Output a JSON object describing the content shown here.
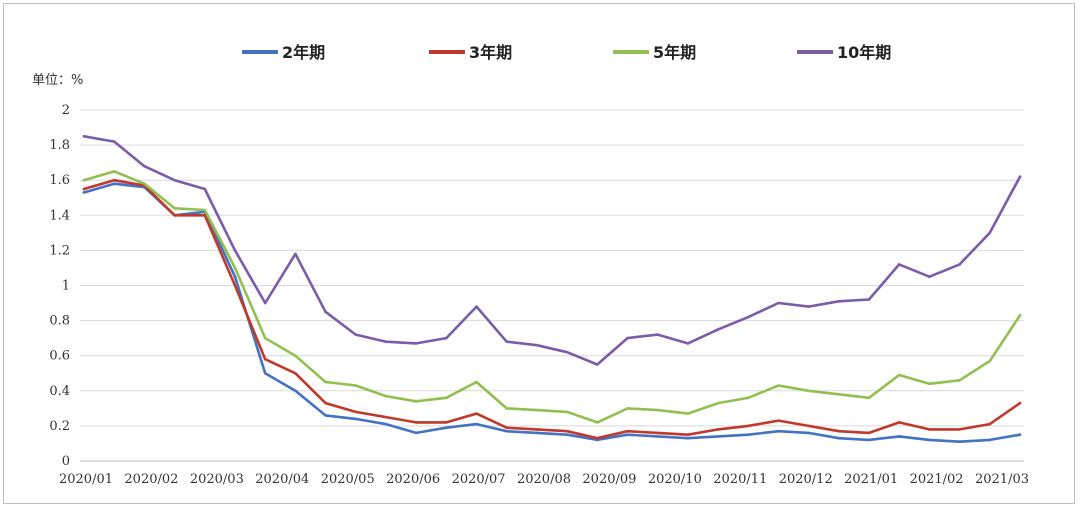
{
  "chart_data": {
    "type": "line",
    "unit_label": "单位：%",
    "ylim": [
      0,
      2
    ],
    "yticks": [
      "0",
      "0.2",
      "0.4",
      "0.6",
      "0.8",
      "1",
      "1.2",
      "1.4",
      "1.6",
      "1.8",
      "2"
    ],
    "grid": true,
    "legend_position": "top",
    "x_labels": [
      "2020/01",
      "2020/02",
      "2020/03",
      "2020/04",
      "2020/05",
      "2020/06",
      "2020/07",
      "2020/08",
      "2020/09",
      "2020/10",
      "2020/11",
      "2020/12",
      "2021/01",
      "2021/02",
      "2021/03"
    ],
    "x": [
      "2020/01 start",
      "2020/01 mid",
      "2020/02 start",
      "2020/02 mid",
      "2020/03 start",
      "2020/03 early",
      "2020/03 mid",
      "2020/03 late",
      "2020/04 start",
      "2020/04 mid",
      "2020/05 start",
      "2020/05 mid",
      "2020/06 start",
      "2020/06 mid",
      "2020/07 start",
      "2020/07 mid",
      "2020/08 start",
      "2020/08 mid",
      "2020/09 start",
      "2020/09 mid",
      "2020/10 start",
      "2020/10 mid",
      "2020/11 start",
      "2020/11 mid",
      "2020/12 start",
      "2020/12 mid",
      "2021/01 start",
      "2021/01 mid",
      "2021/02 start",
      "2021/02 mid",
      "2021/03 start",
      "2021/03 mid"
    ],
    "series": [
      {
        "name": "2年期",
        "color": "#4472C4",
        "values": [
          1.53,
          1.58,
          1.56,
          1.4,
          1.42,
          1.05,
          0.5,
          0.4,
          0.26,
          0.24,
          0.21,
          0.16,
          0.19,
          0.21,
          0.17,
          0.16,
          0.15,
          0.12,
          0.15,
          0.14,
          0.13,
          0.14,
          0.15,
          0.17,
          0.16,
          0.13,
          0.12,
          0.14,
          0.12,
          0.11,
          0.12,
          0.15
        ]
      },
      {
        "name": "3年期",
        "color": "#C0392B",
        "values": [
          1.55,
          1.6,
          1.57,
          1.4,
          1.4,
          1.0,
          0.58,
          0.5,
          0.33,
          0.28,
          0.25,
          0.22,
          0.22,
          0.27,
          0.19,
          0.18,
          0.17,
          0.13,
          0.17,
          0.16,
          0.15,
          0.18,
          0.2,
          0.23,
          0.2,
          0.17,
          0.16,
          0.22,
          0.18,
          0.18,
          0.21,
          0.33
        ]
      },
      {
        "name": "5年期",
        "color": "#92C050",
        "values": [
          1.6,
          1.65,
          1.58,
          1.44,
          1.43,
          1.1,
          0.7,
          0.6,
          0.45,
          0.43,
          0.37,
          0.34,
          0.36,
          0.45,
          0.3,
          0.29,
          0.28,
          0.22,
          0.3,
          0.29,
          0.27,
          0.33,
          0.36,
          0.43,
          0.4,
          0.38,
          0.36,
          0.49,
          0.44,
          0.46,
          0.57,
          0.83
        ]
      },
      {
        "name": "10年期",
        "color": "#7B5CA8",
        "values": [
          1.85,
          1.82,
          1.68,
          1.6,
          1.55,
          1.2,
          0.9,
          1.18,
          0.85,
          0.72,
          0.68,
          0.67,
          0.7,
          0.88,
          0.68,
          0.66,
          0.62,
          0.55,
          0.7,
          0.72,
          0.67,
          0.75,
          0.82,
          0.9,
          0.88,
          0.91,
          0.92,
          1.12,
          1.05,
          1.12,
          1.3,
          1.62
        ]
      }
    ]
  }
}
